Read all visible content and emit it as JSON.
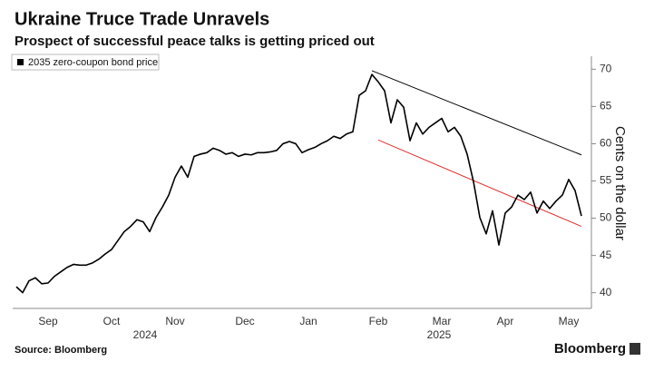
{
  "chart_data": {
    "type": "line",
    "title": "Ukraine Truce Trade Unravels",
    "subtitle": "Prospect of successful peace talks is getting priced out",
    "y_label": "Cents on the dollar",
    "source": "Source: Bloomberg",
    "brand": "Bloomberg",
    "year_labels": [
      "2024",
      "2025"
    ],
    "categories": [
      null,
      null,
      null,
      null,
      null,
      "Sep",
      null,
      null,
      null,
      null,
      null,
      null,
      null,
      null,
      null,
      "Oct",
      null,
      null,
      null,
      null,
      null,
      null,
      null,
      null,
      null,
      "Nov",
      null,
      null,
      null,
      null,
      null,
      null,
      null,
      null,
      null,
      null,
      "Dec",
      null,
      null,
      null,
      null,
      null,
      null,
      null,
      null,
      null,
      "Jan",
      null,
      null,
      null,
      null,
      null,
      null,
      null,
      null,
      null,
      null,
      "Feb",
      null,
      null,
      null,
      null,
      null,
      null,
      null,
      null,
      null,
      "Mar",
      null,
      null,
      null,
      null,
      null,
      null,
      null,
      null,
      null,
      "Apr",
      null,
      null,
      null,
      null,
      null,
      null,
      null,
      null,
      null,
      "May",
      null,
      null
    ],
    "series": [
      {
        "name": "2035 zero-coupon bond price",
        "color": "#000000",
        "values": [
          40.8,
          40,
          41.6,
          42,
          41.2,
          41.3,
          42.2,
          42.8,
          43.4,
          43.8,
          43.7,
          43.7,
          44,
          44.5,
          45.2,
          45.8,
          47,
          48.2,
          48.9,
          49.8,
          49.5,
          48.2,
          50.1,
          51.5,
          53.1,
          55.5,
          57,
          55.5,
          58.3,
          58.6,
          58.8,
          59.4,
          59.1,
          58.6,
          58.8,
          58.3,
          58.6,
          58.5,
          58.8,
          58.8,
          58.9,
          59.1,
          60,
          60.3,
          60,
          58.8,
          59.2,
          59.5,
          60,
          60.4,
          61,
          60.7,
          61.3,
          61.6,
          66.5,
          67.1,
          69.3,
          68.3,
          67.1,
          62.8,
          65.9,
          64.9,
          60.4,
          62.8,
          61.3,
          62.2,
          62.8,
          63.4,
          61.6,
          62.2,
          61,
          58.6,
          54.9,
          50.1,
          47.9,
          51,
          46.4,
          50.7,
          51.5,
          53.1,
          52.5,
          53.5,
          50.7,
          52.3,
          51.3,
          52.3,
          53.1,
          55.2,
          53.7,
          50.3
        ]
      }
    ],
    "trend_lines": [
      {
        "color": "#000000",
        "from": [
          56,
          69.8
        ],
        "to": [
          89,
          58.5
        ]
      },
      {
        "color": "#e03030",
        "from": [
          57,
          60.5
        ],
        "to": [
          89,
          48.9
        ]
      }
    ],
    "ylim": [
      38.5,
      71.5
    ],
    "yticks": [
      40,
      45,
      50,
      55,
      60,
      65,
      70
    ],
    "grid": false
  }
}
